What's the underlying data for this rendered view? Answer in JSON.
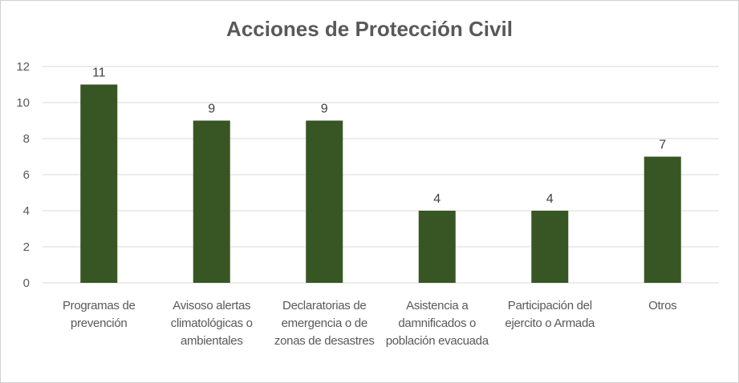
{
  "chart_data": {
    "type": "bar",
    "title": "Acciones de Protección Civil",
    "categories": [
      "Programas de prevención",
      "Avisoso alertas climatológicas o ambientales",
      "Declaratorias de emergencia o de zonas de desastres",
      "Asistencia a damnificados o población evacuada",
      "Participación del ejercito o Armada",
      "Otros"
    ],
    "values": [
      11,
      9,
      9,
      4,
      4,
      7
    ],
    "ylim": [
      0,
      12
    ],
    "yticks": [
      "0",
      "2",
      "4",
      "6",
      "8",
      "10",
      "12"
    ],
    "grid": true,
    "legend": "none",
    "bar_color": "#375623"
  }
}
